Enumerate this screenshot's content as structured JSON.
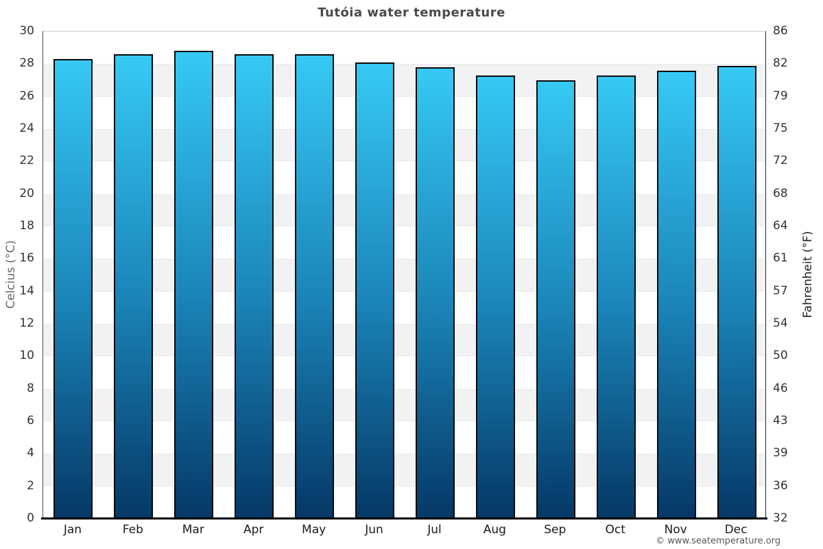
{
  "chart_data": {
    "type": "bar",
    "title": "Tutóia water temperature",
    "categories": [
      "Jan",
      "Feb",
      "Mar",
      "Apr",
      "May",
      "Jun",
      "Jul",
      "Aug",
      "Sep",
      "Oct",
      "Nov",
      "Dec"
    ],
    "values": [
      28.3,
      28.6,
      28.8,
      28.6,
      28.6,
      28.1,
      27.8,
      27.3,
      27.0,
      27.3,
      27.6,
      27.9
    ],
    "ylabel_left": "Celcius (°C)",
    "ylabel_right": "Fahrenheit (°F)",
    "ylim_celsius": [
      0,
      30
    ],
    "yticks_celsius": [
      0,
      2,
      4,
      6,
      8,
      10,
      12,
      14,
      16,
      18,
      20,
      22,
      24,
      26,
      28,
      30
    ],
    "yticks_fahrenheit": [
      32,
      36,
      39,
      43,
      46,
      50,
      54,
      57,
      61,
      64,
      68,
      72,
      75,
      79,
      82,
      86
    ],
    "legend": "none",
    "grid": "alternating-horizontal-bands-every-2C",
    "colors": {
      "bar_gradient_top": "#36c9f4",
      "bar_gradient_mid": "#1b85b9",
      "bar_gradient_bottom": "#053866",
      "bar_border": "#0a0a0a",
      "band_light": "#ffffff",
      "band_dark": "#f2f2f2",
      "bottom_axis": "#000000",
      "title_text": "#4a4a4a",
      "tick_text": "#333333"
    }
  },
  "footer": {
    "attribution": "© www.seatemperature.org"
  }
}
